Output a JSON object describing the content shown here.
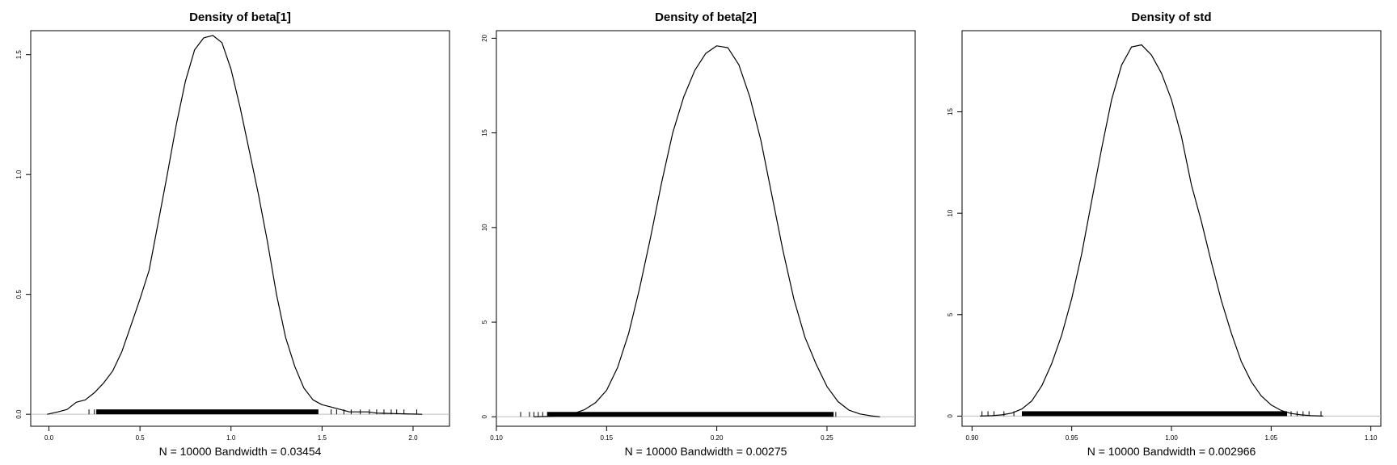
{
  "chart_data": [
    {
      "type": "line",
      "title": "Density of beta[1]",
      "xlabel": "N = 10000   Bandwidth = 0.03454",
      "ylabel": "",
      "xlim": [
        -0.1,
        2.2
      ],
      "ylim": [
        -0.05,
        1.6
      ],
      "xticks": [
        "0.0",
        "0.5",
        "1.0",
        "1.5",
        "2.0"
      ],
      "yticks": [
        "0.0",
        "0.5",
        "1.0",
        "1.5"
      ],
      "grid": false,
      "rug": {
        "min": 0.22,
        "max": 2.02,
        "core": [
          0.26,
          1.48
        ],
        "outliers": [
          0.22,
          0.25,
          0.27,
          1.55,
          1.58,
          1.62,
          1.66,
          1.71,
          1.76,
          1.8,
          1.84,
          1.88,
          1.91,
          1.95,
          2.02
        ]
      },
      "series": [
        {
          "x": [
            -0.01,
            0.05,
            0.1,
            0.15,
            0.2,
            0.25,
            0.3,
            0.35,
            0.4,
            0.45,
            0.5,
            0.55,
            0.6,
            0.65,
            0.7,
            0.75,
            0.8,
            0.85,
            0.9,
            0.95,
            1.0,
            1.05,
            1.1,
            1.15,
            1.2,
            1.25,
            1.3,
            1.35,
            1.4,
            1.45,
            1.5,
            1.55,
            1.6,
            1.65,
            1.7,
            1.75,
            1.8,
            1.85,
            1.9,
            1.95,
            2.0,
            2.05
          ],
          "y": [
            0.0,
            0.01,
            0.02,
            0.05,
            0.06,
            0.09,
            0.13,
            0.18,
            0.26,
            0.37,
            0.48,
            0.6,
            0.8,
            1.0,
            1.21,
            1.39,
            1.52,
            1.57,
            1.58,
            1.55,
            1.44,
            1.28,
            1.1,
            0.92,
            0.72,
            0.5,
            0.32,
            0.2,
            0.11,
            0.06,
            0.04,
            0.03,
            0.02,
            0.01,
            0.01,
            0.01,
            0.005,
            0.004,
            0.003,
            0.002,
            0.001,
            0.0
          ]
        }
      ]
    },
    {
      "type": "line",
      "title": "Density of beta[2]",
      "xlabel": "N = 10000   Bandwidth = 0.00275",
      "ylabel": "",
      "xlim": [
        0.1,
        0.29
      ],
      "ylim": [
        -0.5,
        20.4
      ],
      "xticks": [
        "0.10",
        "0.15",
        "0.20",
        "0.25"
      ],
      "yticks": [
        "0",
        "5",
        "10",
        "15",
        "20"
      ],
      "grid": false,
      "rug": {
        "min": 0.111,
        "max": 0.254,
        "core": [
          0.123,
          0.253
        ],
        "outliers": [
          0.111,
          0.115,
          0.117,
          0.119,
          0.121,
          0.254
        ]
      },
      "series": [
        {
          "x": [
            0.117,
            0.125,
            0.13,
            0.135,
            0.14,
            0.145,
            0.15,
            0.155,
            0.16,
            0.165,
            0.17,
            0.175,
            0.18,
            0.185,
            0.19,
            0.195,
            0.2,
            0.205,
            0.21,
            0.215,
            0.22,
            0.225,
            0.23,
            0.235,
            0.24,
            0.245,
            0.25,
            0.255,
            0.26,
            0.265,
            0.27,
            0.274
          ],
          "y": [
            0.0,
            0.03,
            0.07,
            0.17,
            0.38,
            0.75,
            1.4,
            2.6,
            4.4,
            6.8,
            9.5,
            12.4,
            15.0,
            16.9,
            18.3,
            19.2,
            19.6,
            19.5,
            18.6,
            16.9,
            14.6,
            11.7,
            8.8,
            6.2,
            4.2,
            2.8,
            1.6,
            0.8,
            0.35,
            0.15,
            0.05,
            0.0
          ]
        }
      ]
    },
    {
      "type": "line",
      "title": "Density of std",
      "xlabel": "N = 10000   Bandwidth = 0.002966",
      "ylabel": "",
      "xlim": [
        0.895,
        1.105
      ],
      "ylim": [
        -0.5,
        19.0
      ],
      "xticks": [
        "0.90",
        "0.95",
        "1.00",
        "1.05",
        "1.10"
      ],
      "yticks": [
        "0",
        "5",
        "10",
        "15"
      ],
      "grid": false,
      "rug": {
        "min": 0.905,
        "max": 1.075,
        "core": [
          0.925,
          1.058
        ],
        "outliers": [
          0.905,
          0.908,
          0.911,
          0.916,
          0.921,
          1.06,
          1.063,
          1.066,
          1.069,
          1.075
        ]
      },
      "series": [
        {
          "x": [
            0.904,
            0.91,
            0.915,
            0.92,
            0.925,
            0.93,
            0.935,
            0.94,
            0.945,
            0.95,
            0.955,
            0.96,
            0.965,
            0.97,
            0.975,
            0.98,
            0.985,
            0.99,
            0.995,
            1.0,
            1.005,
            1.01,
            1.015,
            1.02,
            1.025,
            1.03,
            1.035,
            1.04,
            1.045,
            1.05,
            1.055,
            1.06,
            1.065,
            1.07,
            1.076
          ],
          "y": [
            0.0,
            0.02,
            0.06,
            0.15,
            0.35,
            0.75,
            1.5,
            2.6,
            4.0,
            5.8,
            8.0,
            10.6,
            13.2,
            15.6,
            17.3,
            18.2,
            18.3,
            17.8,
            16.9,
            15.6,
            13.8,
            11.4,
            9.6,
            7.6,
            5.7,
            4.1,
            2.7,
            1.7,
            1.0,
            0.55,
            0.28,
            0.13,
            0.06,
            0.02,
            0.0
          ]
        }
      ]
    }
  ]
}
